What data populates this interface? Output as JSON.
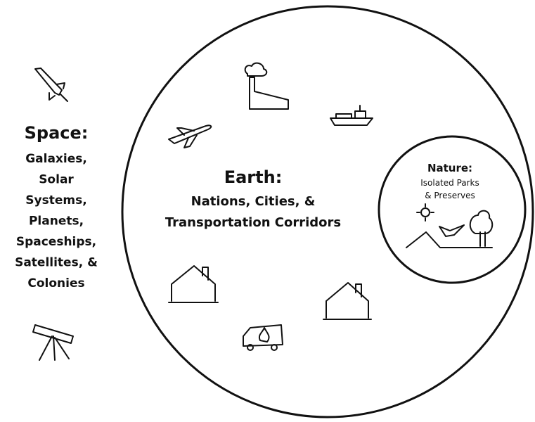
{
  "space": {
    "title": "Space:",
    "lines": [
      "Galaxies,",
      "Solar",
      "Systems,",
      "Planets,",
      "Spaceships,",
      "Satellites, &",
      "Colonies"
    ]
  },
  "earth": {
    "title": "Earth:",
    "lines": [
      "Nations, Cities, &",
      "Transportation Corridors"
    ]
  },
  "nature": {
    "title": "Nature:",
    "lines": [
      "Isolated Parks",
      "& Preserves"
    ]
  }
}
